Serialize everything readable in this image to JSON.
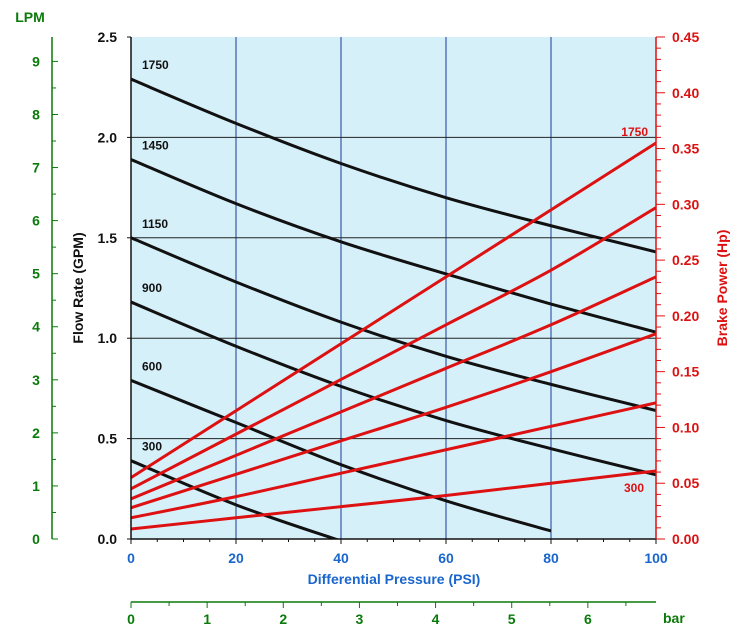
{
  "colors": {
    "plot_bg": "#d6f0fa",
    "grid": "#1a3a9a",
    "flow": "#111111",
    "power": "#dd1111",
    "lpm": "#0a7a0a",
    "pressure": "#1a66cc",
    "bar": "#0a7a0a"
  },
  "chart_data": {
    "type": "line",
    "x": [
      0,
      20,
      40,
      60,
      80,
      100
    ],
    "xlabel": "Differential Pressure (PSI)",
    "ylabel": "Flow Rate (GPM)",
    "ylabel_right": "Brake Power (Hp)",
    "xlim": [
      0,
      100
    ],
    "ylim": [
      0,
      2.5
    ],
    "ylim_right": [
      0,
      0.45
    ],
    "grid": true,
    "x_ticks": [
      "0",
      "20",
      "40",
      "60",
      "80",
      "100"
    ],
    "y_ticks": [
      "0.0",
      "0.5",
      "1.0",
      "1.5",
      "2.0",
      "2.5"
    ],
    "y_right_ticks": [
      "0.00",
      "0.05",
      "0.10",
      "0.15",
      "0.20",
      "0.25",
      "0.30",
      "0.35",
      "0.40",
      "0.45"
    ],
    "lpm_axis": {
      "label": "LPM",
      "ticks": [
        "0",
        "1",
        "2",
        "3",
        "4",
        "5",
        "6",
        "7",
        "8",
        "9"
      ],
      "max": 9.46
    },
    "bar_axis": {
      "label": "bar",
      "ticks": [
        "0",
        "1",
        "2",
        "3",
        "4",
        "5",
        "6"
      ],
      "max": 6.895
    },
    "flow_series": [
      {
        "name": "1750",
        "values": [
          2.29,
          2.07,
          1.87,
          1.7,
          1.56,
          1.43
        ]
      },
      {
        "name": "1450",
        "values": [
          1.89,
          1.67,
          1.48,
          1.32,
          1.17,
          1.03
        ]
      },
      {
        "name": "1150",
        "values": [
          1.5,
          1.28,
          1.08,
          0.91,
          0.77,
          0.64
        ]
      },
      {
        "name": "900",
        "values": [
          1.18,
          0.96,
          0.76,
          0.59,
          0.45,
          0.32
        ]
      },
      {
        "name": "600",
        "values": [
          0.79,
          0.58,
          0.37,
          0.19,
          0.04,
          null
        ]
      },
      {
        "name": "300",
        "values": [
          0.39,
          0.17,
          -0.01,
          null,
          null,
          null
        ]
      }
    ],
    "power_series": [
      {
        "name": "1750",
        "values": [
          0.055,
          0.115,
          0.175,
          0.235,
          0.295,
          0.355
        ]
      },
      {
        "name": "1450",
        "values": [
          0.045,
          0.094,
          0.143,
          0.192,
          0.241,
          0.297
        ]
      },
      {
        "name": "1150",
        "values": [
          0.036,
          0.075,
          0.114,
          0.153,
          0.192,
          0.235
        ]
      },
      {
        "name": "900",
        "values": [
          0.028,
          0.058,
          0.088,
          0.118,
          0.15,
          0.184
        ]
      },
      {
        "name": "600",
        "values": [
          0.019,
          0.038,
          0.059,
          0.08,
          0.101,
          0.122
        ]
      },
      {
        "name": "300",
        "values": [
          0.009,
          0.019,
          0.029,
          0.039,
          0.05,
          0.061
        ]
      }
    ],
    "annotations": {
      "flow_labels": [
        "1750",
        "1450",
        "1150",
        "900",
        "600",
        "300"
      ],
      "power_label_top": "1750",
      "power_label_bottom": "300"
    }
  }
}
